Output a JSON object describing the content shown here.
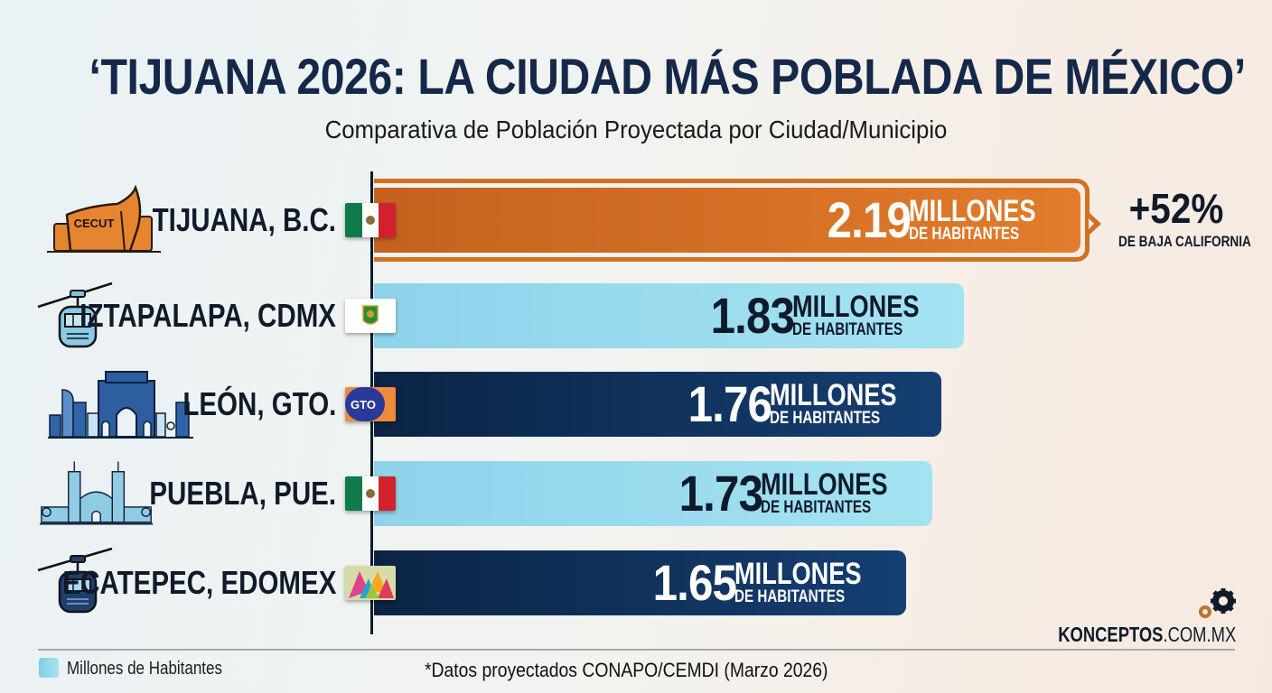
{
  "header": {
    "title": "‘TIJUANA 2026: LA CIUDAD MÁS POBLADA DE MÉXICO’",
    "subtitle": "Comparativa de Población Proyectada por Ciudad/Municipio"
  },
  "colors": {
    "highlight": "#e27c2c",
    "light_bar": "#a4e3f1",
    "dark_bar": "#153f73",
    "title": "#14284a"
  },
  "chart_data": {
    "type": "bar",
    "orientation": "horizontal",
    "title": "‘TIJUANA 2026: LA CIUDAD MÁS POBLADA DE MÉXICO’",
    "subtitle": "Comparativa de Población Proyectada por Ciudad/Municipio",
    "xlabel": "",
    "ylabel": "",
    "unit": "Millones de Habitantes",
    "categories": [
      "TIJUANA, B.C.",
      "IZTAPALAPA, CDMX",
      "LEÓN, GTO.",
      "PUEBLA, PUE.",
      "ECATEPEC, EDOMEX"
    ],
    "values": [
      2.19,
      1.83,
      1.76,
      1.73,
      1.65
    ],
    "value_labels": [
      "2.19",
      "1.83",
      "1.76",
      "1.73",
      "1.65"
    ],
    "unit_line1": "MILLONES",
    "unit_line2": "DE HABITANTES",
    "bar_styles": [
      "orange",
      "light",
      "dark",
      "light",
      "dark"
    ],
    "row_icons": [
      "cecut-building-icon",
      "cable-car-icon",
      "arch-skyline-icon",
      "cathedral-icon",
      "cable-car-icon"
    ],
    "flags": [
      "mexico-flag-icon",
      "cdmx-shield-icon",
      "gto-logo-icon",
      "mexico-flag-icon",
      "edomex-logo-icon"
    ],
    "annotation": {
      "target": "TIJUANA, B.C.",
      "value": "+52%",
      "label": "DE BAJA CALIFORNIA"
    },
    "legend": [
      {
        "label": "Millones de Habitantes",
        "position": "bottom-left"
      }
    ],
    "grid": false,
    "xlim": [
      0,
      2.19
    ]
  },
  "rows": [
    {
      "city": "TIJUANA, B.C.",
      "value": "2.19",
      "u1": "MILLONES",
      "u2": "DE HABITANTES",
      "icon_text": "CECUT"
    },
    {
      "city": "IZTAPALAPA, CDMX",
      "value": "1.83",
      "u1": "MILLONES",
      "u2": "DE HABITANTES"
    },
    {
      "city": "LEÓN, GTO.",
      "value": "1.76",
      "u1": "MILLONES",
      "u2": "DE HABITANTES",
      "flag_text": "GTO"
    },
    {
      "city": "PUEBLA, PUE.",
      "value": "1.73",
      "u1": "MILLONES",
      "u2": "DE HABITANTES"
    },
    {
      "city": "ECATEPEC, EDOMEX",
      "value": "1.65",
      "u1": "MILLONES",
      "u2": "DE HABITANTES"
    }
  ],
  "callout": {
    "value": "+52%",
    "label": "DE BAJA CALIFORNIA"
  },
  "footer": {
    "legend_label": "Millones de Habitantes",
    "source": "*Datos proyectados CONAPO/CEMDI (Marzo 2026)",
    "brand_main": "KONCEPTOS",
    "brand_tld": ".COM.MX"
  }
}
